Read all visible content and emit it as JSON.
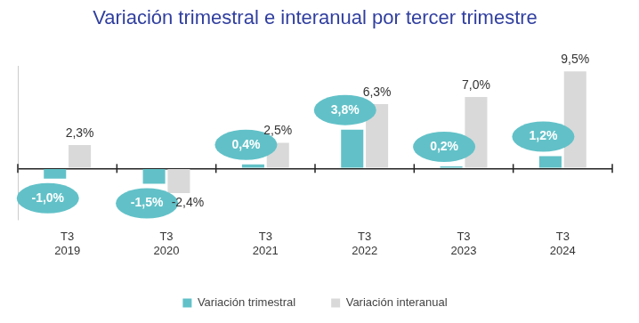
{
  "chart_data": {
    "type": "bar",
    "title": "Variación trimestral e interanual por tercer trimestre",
    "categories": [
      [
        "T3",
        "2019"
      ],
      [
        "T3",
        "2020"
      ],
      [
        "T3",
        "2021"
      ],
      [
        "T3",
        "2022"
      ],
      [
        "T3",
        "2023"
      ],
      [
        "T3",
        "2024"
      ]
    ],
    "series": [
      {
        "name": "Variación trimestral",
        "color": "#62c1c8",
        "values": [
          -1.0,
          -1.5,
          0.4,
          3.8,
          0.2,
          1.2
        ],
        "value_labels": [
          "-1,0%",
          "-1,5%",
          "0,4%",
          "3,8%",
          "0,2%",
          "1,2%"
        ]
      },
      {
        "name": "Variación interanual",
        "color": "#d9d9d9",
        "values": [
          2.3,
          -2.4,
          2.5,
          6.3,
          7.0,
          9.5
        ],
        "value_labels": [
          "2,3%",
          "-2,4%",
          "2,5%",
          "6,3%",
          "7,0%",
          "9,5%"
        ]
      }
    ],
    "ylim": [
      -5,
      10
    ],
    "yticks": [
      0
    ],
    "grid": true,
    "tick_labels": "x",
    "data_labels": true,
    "legend": "bottom"
  }
}
